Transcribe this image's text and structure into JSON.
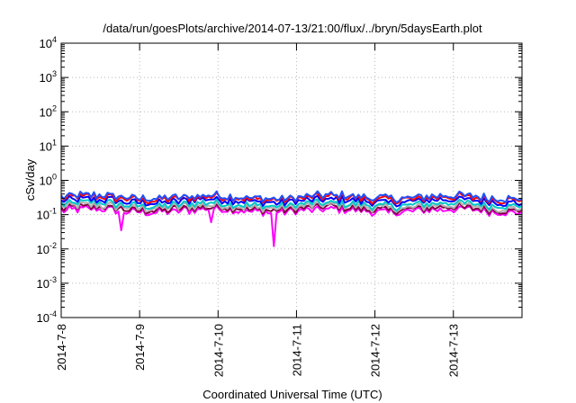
{
  "chart_data": {
    "type": "line",
    "title": "/data/run/goesPlots/archive/2014-07-13/21:00/flux/../bryn/5daysEarth.plot",
    "xlabel": "Coordinated Universal Time (UTC)",
    "ylabel": "cSv/day",
    "yscale": "log",
    "ylim": [
      0.0001,
      10000
    ],
    "y_ticks": [
      {
        "base": "10",
        "exp": "4"
      },
      {
        "base": "10",
        "exp": "3"
      },
      {
        "base": "10",
        "exp": "2"
      },
      {
        "base": "10",
        "exp": "1"
      },
      {
        "base": "10",
        "exp": "0"
      },
      {
        "base": "10",
        "exp": "-1"
      },
      {
        "base": "10",
        "exp": "-2"
      },
      {
        "base": "10",
        "exp": "-3"
      },
      {
        "base": "10",
        "exp": "-4"
      }
    ],
    "x_start": "2014-07-08",
    "x_end": "2014-07-13T21:00",
    "x_ticks": [
      "2014-7-8",
      "2014-7-9",
      "2014-7-10",
      "2014-7-11",
      "2014-7-12",
      "2014-7-13"
    ],
    "grid": true,
    "series_colors": [
      "#ff00ff",
      "#800040",
      "#b0b0b0",
      "#00c8c8",
      "#0000ff",
      "#ff0000",
      "#2050ff"
    ],
    "series_levels": [
      0.13,
      0.15,
      0.17,
      0.2,
      0.25,
      0.3,
      0.33
    ],
    "dips": [
      {
        "x": "2014-07-08T18:00",
        "y": 0.035
      },
      {
        "x": "2014-07-09T22:00",
        "y": 0.06
      },
      {
        "x": "2014-07-10T17:00",
        "y": 0.012
      }
    ]
  }
}
